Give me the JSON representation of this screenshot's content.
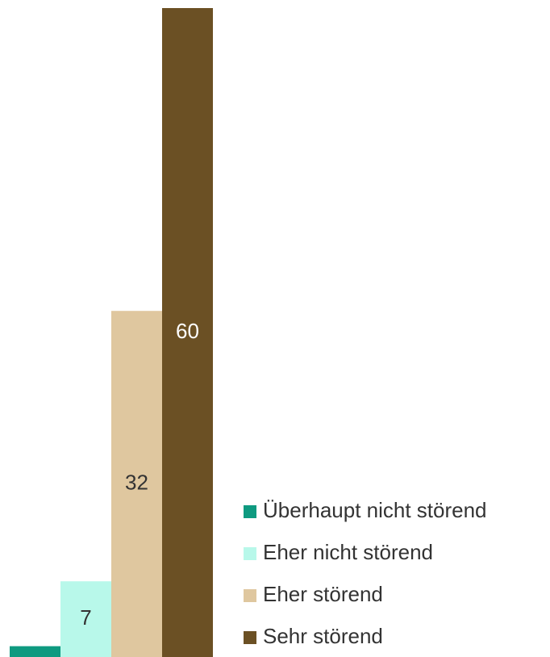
{
  "chart_data": {
    "type": "bar",
    "categories": [
      null
    ],
    "series": [
      {
        "name": "Überhaupt nicht störend",
        "color": "#0e9a80",
        "values": [
          1
        ]
      },
      {
        "name": "Eher nicht störend",
        "color": "#b8f8ea",
        "values": [
          7
        ]
      },
      {
        "name": "Eher störend",
        "color": "#dfc79f",
        "values": [
          32
        ]
      },
      {
        "name": "Sehr störend",
        "color": "#6b5024",
        "values": [
          60
        ]
      }
    ],
    "ylim": [
      0,
      60
    ],
    "legend": "right"
  }
}
